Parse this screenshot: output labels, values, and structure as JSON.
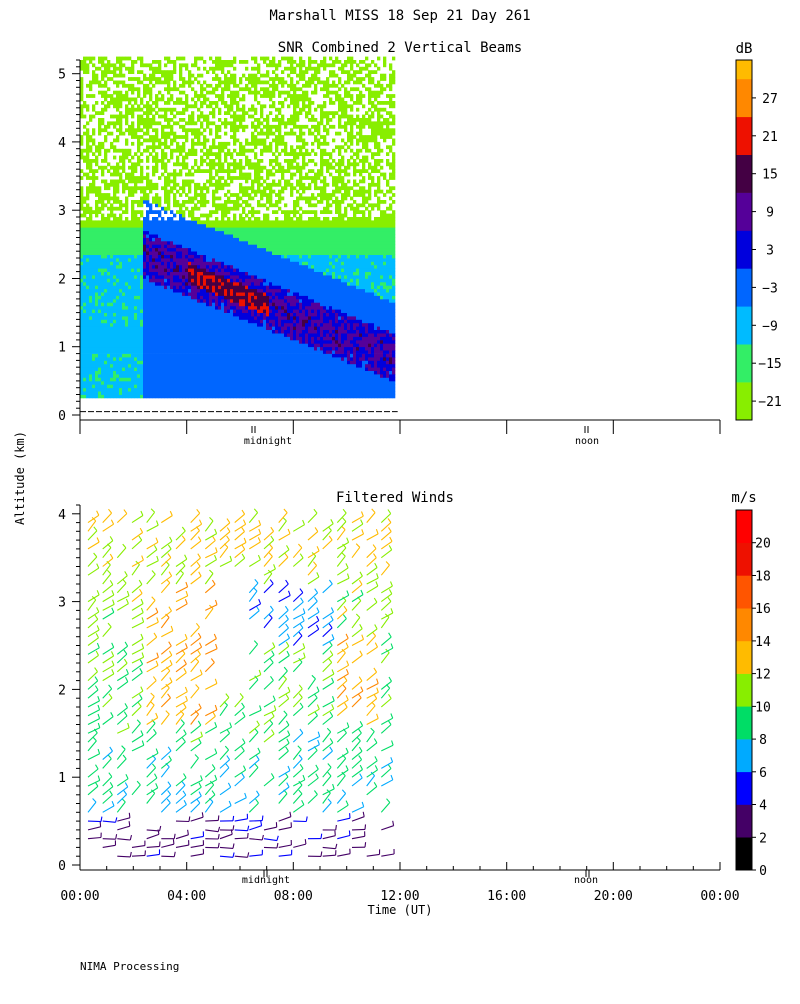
{
  "page_title": "Marshall MISS   18 Sep 21 Day 261",
  "ylabel": "Altitude (km)",
  "xlabel": "Time (UT)",
  "footer": "NIMA Processing",
  "markers": {
    "midnight": "midnight",
    "noon": "noon"
  },
  "colors": {
    "axis": "#000000",
    "background": "#ffffff"
  },
  "chart_data": [
    {
      "type": "heatmap",
      "title": "SNR Combined 2 Vertical Beams",
      "units": "dB",
      "xlabel": "Time (UT)",
      "ylabel": "Altitude (km)",
      "xlim": [
        0,
        24
      ],
      "ylim": [
        0,
        5.2
      ],
      "yticks": [
        0,
        1,
        2,
        3,
        4,
        5
      ],
      "data_time_range": [
        0,
        11.8
      ],
      "data_altitude_range": [
        0.25,
        5.2
      ],
      "colorbar": {
        "range": [
          -24,
          33
        ],
        "tick_values": [
          -21,
          -15,
          -9,
          -3,
          3,
          9,
          15,
          21,
          27
        ],
        "tick_labels": [
          "−21",
          "−15",
          "−9",
          "−3",
          "3",
          "9",
          "15",
          "21",
          "27"
        ],
        "bands": [
          {
            "from": -24,
            "to": -18,
            "color": "#88ee00"
          },
          {
            "from": -18,
            "to": -12,
            "color": "#33ee66"
          },
          {
            "from": -12,
            "to": -6,
            "color": "#00bbff"
          },
          {
            "from": -6,
            "to": 0,
            "color": "#0066ff"
          },
          {
            "from": 0,
            "to": 6,
            "color": "#0000dd"
          },
          {
            "from": 6,
            "to": 12,
            "color": "#550099"
          },
          {
            "from": 12,
            "to": 18,
            "color": "#440044"
          },
          {
            "from": 18,
            "to": 24,
            "color": "#ee1100"
          },
          {
            "from": 24,
            "to": 30,
            "color": "#ff8800"
          },
          {
            "from": 30,
            "to": 33,
            "color": "#ffbb00"
          }
        ]
      }
    },
    {
      "type": "barbs",
      "title": "Filtered Winds",
      "units": "m/s",
      "xlabel": "Time (UT)",
      "ylabel": "Altitude (km)",
      "xlim": [
        0,
        24
      ],
      "ylim": [
        0,
        4.1
      ],
      "yticks": [
        0,
        1,
        2,
        3,
        4
      ],
      "xticks": [
        0,
        4,
        8,
        12,
        16,
        20,
        24
      ],
      "xtick_labels": [
        "00:00",
        "04:00",
        "08:00",
        "12:00",
        "16:00",
        "20:00",
        "00:00"
      ],
      "data_time_range": [
        0,
        11.8
      ],
      "colorbar": {
        "range": [
          0,
          22
        ],
        "tick_values": [
          0,
          2,
          4,
          6,
          8,
          10,
          12,
          14,
          16,
          18,
          20
        ],
        "tick_labels": [
          "0",
          "2",
          "4",
          "6",
          "8",
          "10",
          "12",
          "14",
          "16",
          "18",
          "20"
        ],
        "bands": [
          {
            "from": 0,
            "to": 2,
            "color": "#000000"
          },
          {
            "from": 2,
            "to": 4,
            "color": "#440066"
          },
          {
            "from": 4,
            "to": 6,
            "color": "#0000ff"
          },
          {
            "from": 6,
            "to": 8,
            "color": "#00aaff"
          },
          {
            "from": 8,
            "to": 10,
            "color": "#00dd66"
          },
          {
            "from": 10,
            "to": 12,
            "color": "#88ee00"
          },
          {
            "from": 12,
            "to": 14,
            "color": "#ffbb00"
          },
          {
            "from": 14,
            "to": 16,
            "color": "#ff8800"
          },
          {
            "from": 16,
            "to": 18,
            "color": "#ff5500"
          },
          {
            "from": 18,
            "to": 20,
            "color": "#ee1100"
          },
          {
            "from": 20,
            "to": 22,
            "color": "#ff0000"
          }
        ]
      }
    }
  ]
}
